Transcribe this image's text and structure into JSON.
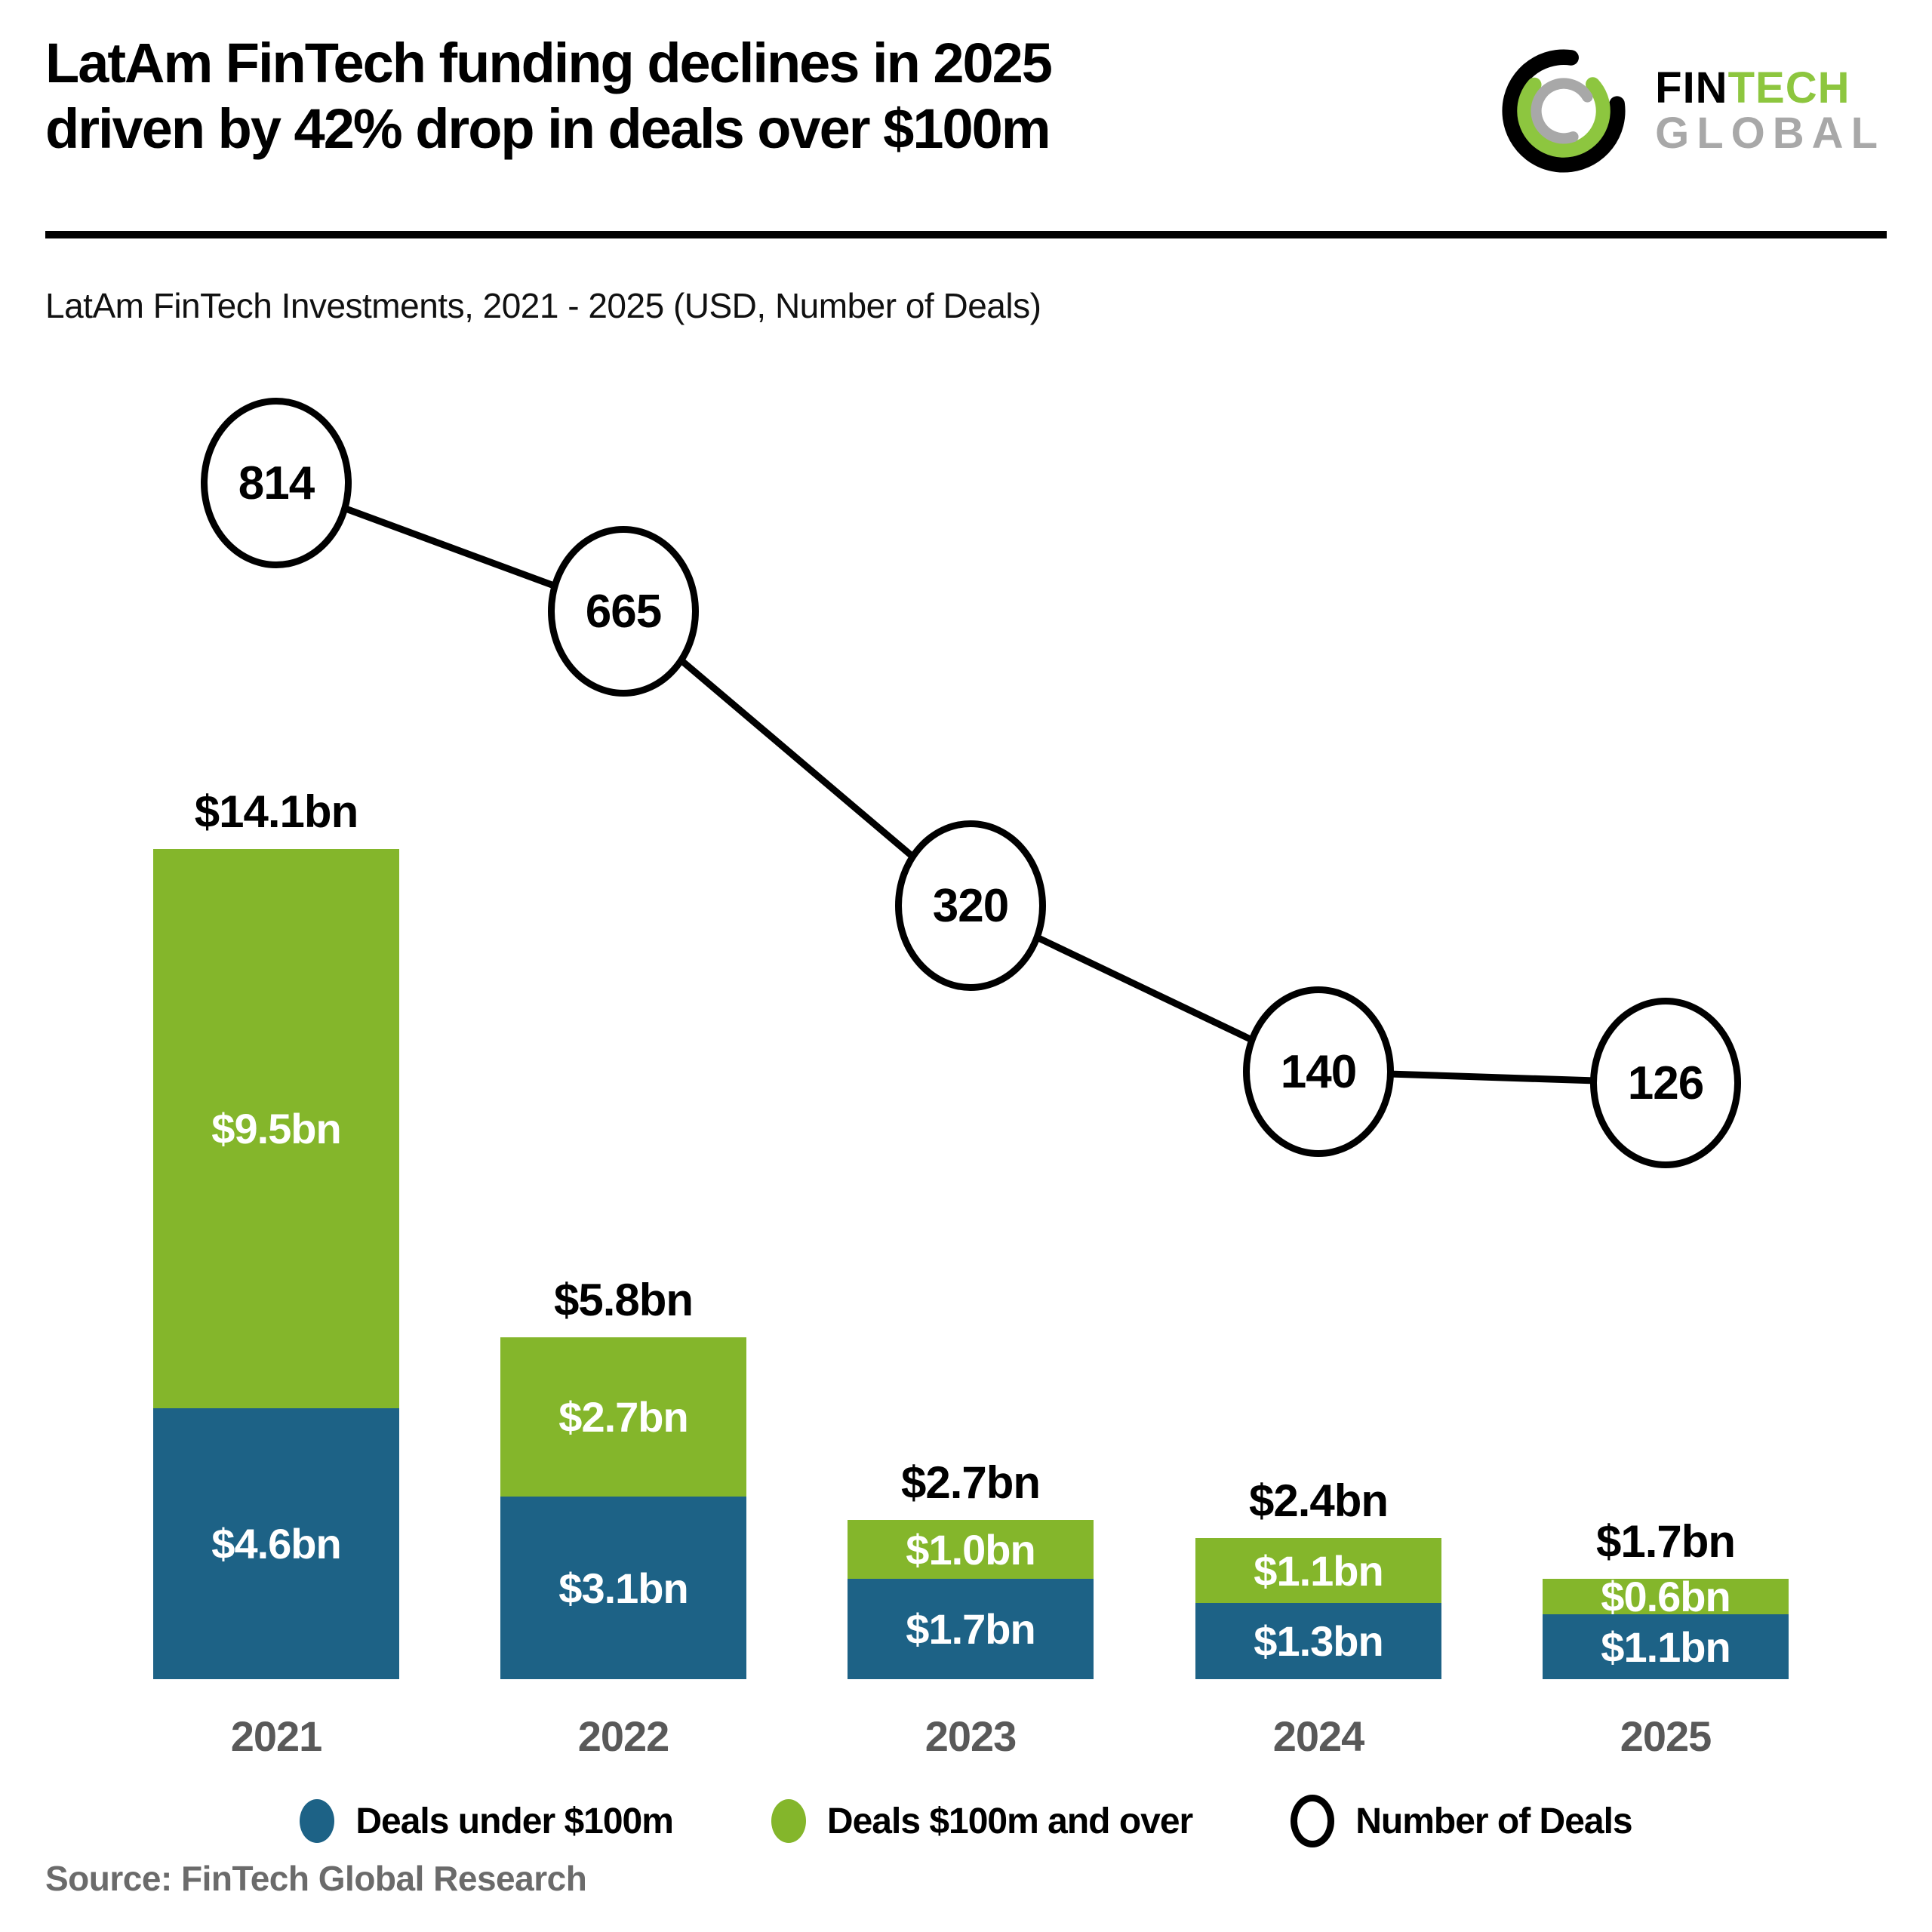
{
  "header": {
    "title_line1": "LatAm FinTech funding declines in 2025",
    "title_line2": "driven by 42% drop in deals over $100m",
    "logo": {
      "word1": "FIN",
      "word2": "TECH",
      "word3": "GLOBAL"
    }
  },
  "subtitle": "LatAm FinTech Investments, 2021 - 2025 (USD, Number of Deals)",
  "source": "Source: FinTech Global Research",
  "colors": {
    "bar_green": "#84B62B",
    "bar_blue": "#1D6286",
    "year_gray": "#595959",
    "source_gray": "#6B6B6B",
    "logo_green": "#8DC63F",
    "logo_gray": "#A8A8A8",
    "line_black": "#000000"
  },
  "legend": {
    "items": [
      {
        "label": "Deals under $100m",
        "swatch": "blue-dot"
      },
      {
        "label": "Deals $100m and over",
        "swatch": "green-dot"
      },
      {
        "label": "Number of Deals",
        "swatch": "open-circle"
      }
    ]
  },
  "chart_data": {
    "type": "bar",
    "subtype": "stacked-bars-with-bubble-line-overlay",
    "title": "LatAm FinTech Investments, 2021 - 2025 (USD, Number of Deals)",
    "categories": [
      "2021",
      "2022",
      "2023",
      "2024",
      "2025"
    ],
    "series": [
      {
        "name": "Deals under $100m",
        "color_key": "bar_blue",
        "values_bn": [
          4.6,
          3.1,
          1.7,
          1.3,
          1.1
        ],
        "labels": [
          "$4.6bn",
          "$3.1bn",
          "$1.7bn",
          "$1.3bn",
          "$1.1bn"
        ]
      },
      {
        "name": "Deals $100m and over",
        "color_key": "bar_green",
        "values_bn": [
          9.5,
          2.7,
          1.0,
          1.1,
          0.6
        ],
        "labels": [
          "$9.5bn",
          "$2.7bn",
          "$1.0bn",
          "$1.1bn",
          "$0.6bn"
        ]
      }
    ],
    "totals_bn": [
      14.1,
      5.8,
      2.7,
      2.4,
      1.7
    ],
    "total_labels": [
      "$14.1bn",
      "$5.8bn",
      "$2.7bn",
      "$2.4bn",
      "$1.7bn"
    ],
    "deals": {
      "name": "Number of Deals",
      "values": [
        814,
        665,
        320,
        140,
        126
      ]
    },
    "unit": "USD billions",
    "ylim": [
      0,
      14.1
    ],
    "grid": false,
    "legend_position": "bottom"
  }
}
